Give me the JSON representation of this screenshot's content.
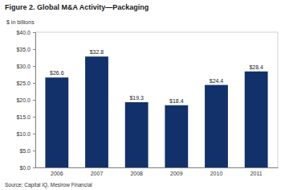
{
  "chart_data": {
    "type": "bar",
    "title": "Figure 2. Global M&A Activity—Packaging",
    "y_label": "$ in billions",
    "source": "Source: Capital IQ, Mesirow Financial",
    "categories": [
      "2006",
      "2007",
      "2008",
      "2009",
      "2010",
      "2011"
    ],
    "values": [
      26.6,
      32.8,
      19.3,
      18.4,
      24.4,
      28.4
    ],
    "value_labels": [
      "$26.6",
      "$32.8",
      "$19.3",
      "$18.4",
      "$24.4",
      "$28.4"
    ],
    "color": "#12306a",
    "ylim": [
      0,
      40
    ],
    "yticks": [
      {
        "value": 0,
        "label": "$0.0"
      },
      {
        "value": 5,
        "label": "$5.0"
      },
      {
        "value": 10,
        "label": "$10.0"
      },
      {
        "value": 15,
        "label": "$15.0"
      },
      {
        "value": 20,
        "label": "$20.0"
      },
      {
        "value": 25,
        "label": "$25.0"
      },
      {
        "value": 30,
        "label": "$30.0"
      },
      {
        "value": 35,
        "label": "$35.0"
      },
      {
        "value": 40,
        "label": "$40.0"
      }
    ],
    "grid": false,
    "data_labels": true
  }
}
